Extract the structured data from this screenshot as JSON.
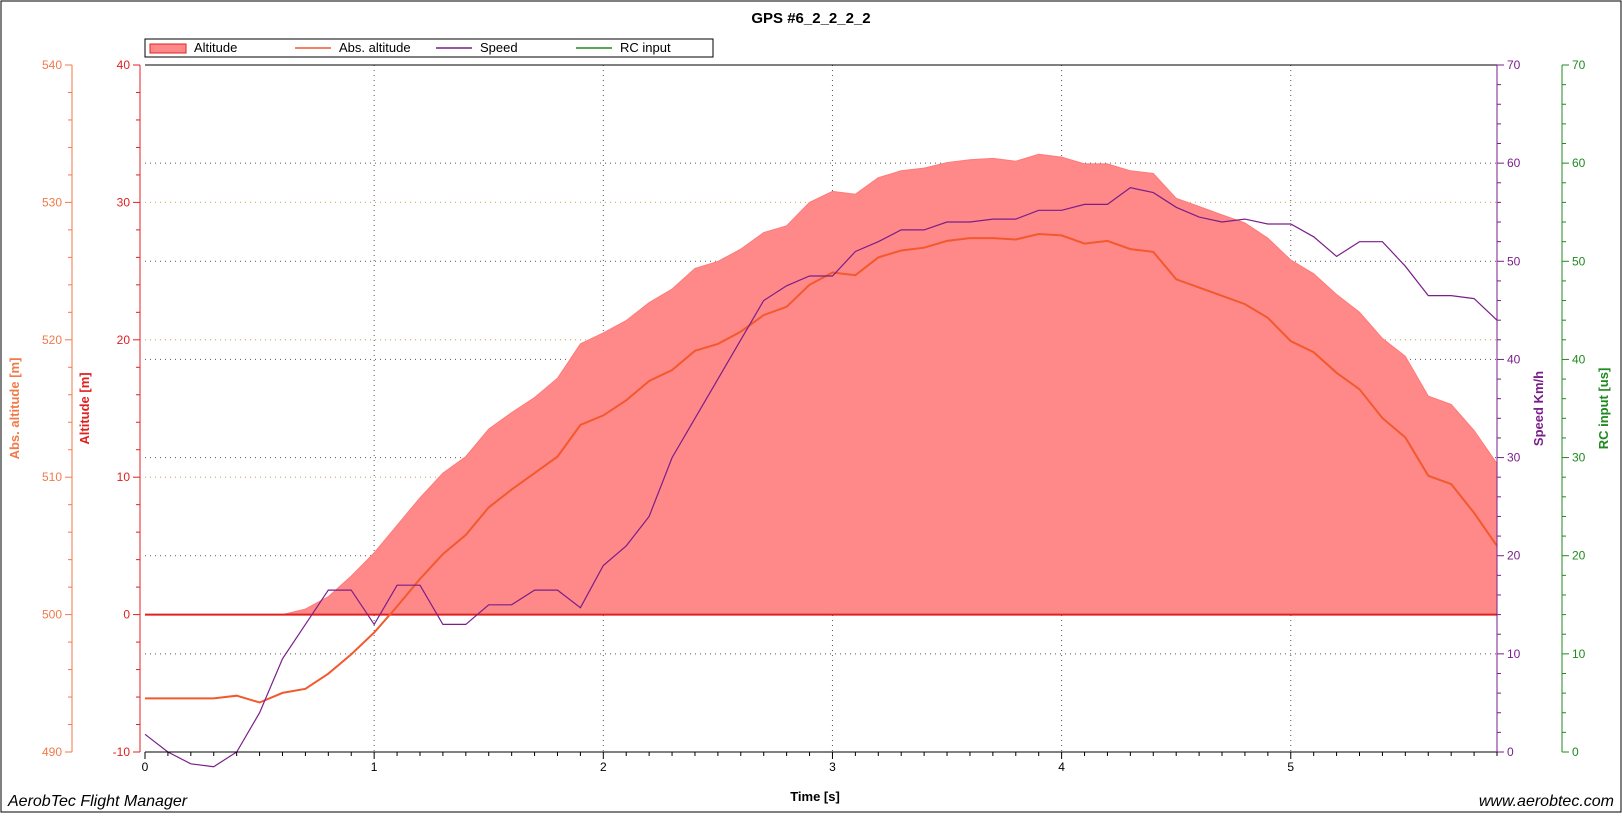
{
  "app": {
    "footer_left": "AerobTec Flight Manager",
    "footer_right": "www.aerobtec.com"
  },
  "chart_data": {
    "type": "line",
    "title": "GPS #6_2_2_2_2",
    "xlabel": "Time [s]",
    "xlim": [
      0,
      5.9
    ],
    "x_ticks": [
      "0",
      "1",
      "2",
      "3",
      "4",
      "5"
    ],
    "grid": true,
    "legend_position": "top-left",
    "axes": {
      "abs_altitude": {
        "label": "Abs. altitude [m]",
        "range": [
          490,
          540
        ],
        "ticks": [
          "490",
          "500",
          "510",
          "520",
          "530",
          "540"
        ],
        "color": "#f07a4a"
      },
      "altitude": {
        "label": "Altitude [m]",
        "range": [
          -10,
          40
        ],
        "ticks": [
          "-10",
          "0",
          "10",
          "20",
          "30",
          "40"
        ],
        "color": "#e02020"
      },
      "speed": {
        "label": "Speed Km/h",
        "range": [
          0,
          70
        ],
        "ticks": [
          "0",
          "10",
          "20",
          "30",
          "40",
          "50",
          "60",
          "70"
        ],
        "color": "#7a1f8a"
      },
      "rc": {
        "label": "RC input [us]",
        "range": [
          0,
          70
        ],
        "ticks": [
          "0",
          "10",
          "20",
          "30",
          "40",
          "50",
          "60",
          "70"
        ],
        "color": "#1f8a1f"
      }
    },
    "series": [
      {
        "name": "Altitude",
        "axis": "altitude",
        "kind": "area",
        "color": "#ff8888",
        "x": [
          0,
          0.1,
          0.2,
          0.3,
          0.4,
          0.5,
          0.6,
          0.7,
          0.8,
          0.9,
          1.0,
          1.1,
          1.2,
          1.3,
          1.4,
          1.5,
          1.6,
          1.7,
          1.8,
          1.9,
          2.0,
          2.1,
          2.2,
          2.3,
          2.4,
          2.5,
          2.6,
          2.7,
          2.8,
          2.9,
          3.0,
          3.1,
          3.2,
          3.3,
          3.4,
          3.5,
          3.6,
          3.7,
          3.8,
          3.9,
          4.0,
          4.1,
          4.2,
          4.3,
          4.4,
          4.5,
          4.6,
          4.7,
          4.8,
          4.9,
          5.0,
          5.1,
          5.2,
          5.3,
          5.4,
          5.5,
          5.6,
          5.7,
          5.8,
          5.9
        ],
        "values": [
          0,
          0,
          0,
          0,
          0,
          0,
          0,
          0.4,
          1.3,
          2.8,
          4.5,
          6.5,
          8.5,
          10.3,
          11.5,
          13.5,
          14.7,
          15.8,
          17.2,
          19.7,
          20.5,
          21.4,
          22.7,
          23.7,
          25.2,
          25.7,
          26.6,
          27.8,
          28.3,
          30.0,
          30.8,
          30.6,
          31.8,
          32.3,
          32.5,
          32.9,
          33.1,
          33.2,
          33.0,
          33.5,
          33.3,
          32.8,
          32.8,
          32.3,
          32.1,
          30.3,
          29.7,
          29.1,
          28.5,
          27.4,
          25.8,
          24.8,
          23.3,
          22.0,
          20.1,
          18.8,
          15.9,
          15.3,
          13.4,
          11.0
        ]
      },
      {
        "name": "Abs. altitude",
        "axis": "abs_altitude",
        "kind": "line",
        "color": "#f25a2e",
        "x": [
          0,
          0.1,
          0.2,
          0.3,
          0.4,
          0.5,
          0.6,
          0.7,
          0.8,
          0.9,
          1.0,
          1.1,
          1.2,
          1.3,
          1.4,
          1.5,
          1.6,
          1.7,
          1.8,
          1.9,
          2.0,
          2.1,
          2.2,
          2.3,
          2.4,
          2.5,
          2.6,
          2.7,
          2.8,
          2.9,
          3.0,
          3.1,
          3.2,
          3.3,
          3.4,
          3.5,
          3.6,
          3.7,
          3.8,
          3.9,
          4.0,
          4.1,
          4.2,
          4.3,
          4.4,
          4.5,
          4.6,
          4.7,
          4.8,
          4.9,
          5.0,
          5.1,
          5.2,
          5.3,
          5.4,
          5.5,
          5.6,
          5.7,
          5.8,
          5.9
        ],
        "values": [
          493.9,
          493.9,
          493.9,
          493.9,
          494.1,
          493.6,
          494.3,
          494.6,
          495.7,
          497.1,
          498.7,
          500.6,
          502.6,
          504.4,
          505.8,
          507.8,
          509.1,
          510.3,
          511.5,
          513.8,
          514.5,
          515.6,
          517.0,
          517.8,
          519.2,
          519.7,
          520.6,
          521.8,
          522.4,
          524.0,
          524.9,
          524.7,
          526.0,
          526.5,
          526.7,
          527.2,
          527.4,
          527.4,
          527.3,
          527.7,
          527.6,
          527.0,
          527.2,
          526.6,
          526.4,
          524.4,
          523.8,
          523.2,
          522.6,
          521.6,
          519.9,
          519.1,
          517.6,
          516.4,
          514.3,
          512.9,
          510.1,
          509.5,
          507.4,
          505.0
        ]
      },
      {
        "name": "Speed",
        "axis": "speed",
        "kind": "line",
        "color": "#7a1f8a",
        "x": [
          0,
          0.1,
          0.2,
          0.3,
          0.4,
          0.5,
          0.6,
          0.7,
          0.8,
          0.9,
          1.0,
          1.1,
          1.2,
          1.3,
          1.4,
          1.5,
          1.6,
          1.7,
          1.8,
          1.9,
          2.0,
          2.1,
          2.2,
          2.3,
          2.4,
          2.5,
          2.6,
          2.7,
          2.8,
          2.9,
          3.0,
          3.1,
          3.2,
          3.3,
          3.4,
          3.5,
          3.6,
          3.7,
          3.8,
          3.9,
          4.0,
          4.1,
          4.2,
          4.3,
          4.4,
          4.5,
          4.6,
          4.7,
          4.8,
          4.9,
          5.0,
          5.1,
          5.2,
          5.3,
          5.4,
          5.5,
          5.6,
          5.7,
          5.8,
          5.9
        ],
        "values": [
          1.8,
          0,
          -1.2,
          -1.5,
          0,
          4.0,
          9.5,
          13.0,
          16.5,
          16.5,
          13.0,
          17.0,
          17.0,
          13.0,
          13.0,
          15.0,
          15.0,
          16.5,
          16.5,
          14.7,
          19.0,
          21.0,
          24.0,
          30.0,
          34.0,
          38.0,
          42.0,
          46.0,
          47.5,
          48.5,
          48.5,
          51.0,
          52.0,
          53.2,
          53.2,
          54.0,
          54.0,
          54.3,
          54.3,
          55.2,
          55.2,
          55.8,
          55.8,
          57.5,
          57.0,
          55.5,
          54.5,
          54.0,
          54.3,
          53.8,
          53.8,
          52.5,
          50.5,
          52.0,
          52.0,
          49.5,
          46.5,
          46.5,
          46.2,
          44.0
        ]
      },
      {
        "name": "RC input",
        "axis": "rc",
        "kind": "line",
        "color": "#1f8a1f",
        "x": [],
        "values": []
      }
    ]
  }
}
